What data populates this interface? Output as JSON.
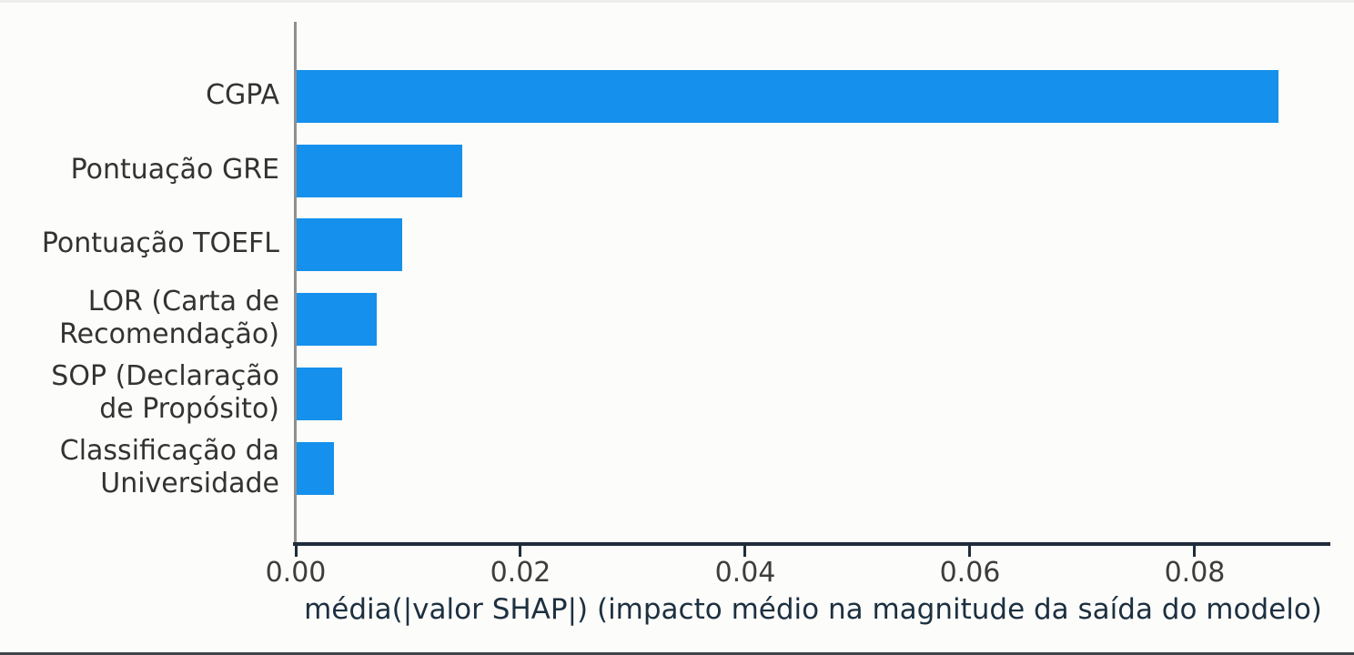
{
  "chart_data": {
    "type": "bar",
    "orientation": "horizontal",
    "title": "",
    "xlabel": "média(|valor SHAP|) (impacto médio na magnitude da saída do modelo)",
    "ylabel": "",
    "categories": [
      "CGPA",
      "Pontuação GRE",
      "Pontuação TOEFL",
      "LOR (Carta de Recomendação)",
      "SOP (Declaração de Propósito)",
      "Classificação da Universidade"
    ],
    "category_lines": [
      [
        "CGPA"
      ],
      [
        "Pontuação GRE"
      ],
      [
        "Pontuação TOEFL"
      ],
      [
        "LOR (Carta de",
        "Recomendação)"
      ],
      [
        "SOP (Declaração",
        "de Propósito)"
      ],
      [
        "Classificação da",
        "Universidade"
      ]
    ],
    "values": [
      0.0875,
      0.0148,
      0.0095,
      0.0072,
      0.0041,
      0.0034
    ],
    "xlim": [
      0,
      0.092
    ],
    "xticks": [
      0,
      0.02,
      0.04,
      0.06,
      0.08
    ],
    "xtick_labels": [
      "0.00",
      "0.02",
      "0.04",
      "0.06",
      "0.08"
    ],
    "grid": false,
    "legend": null,
    "bar_color": "#1590EC",
    "axis_color": "#1f2d3a",
    "left_spine_color": "#8f8f8f",
    "tick_label_color": "#3d3d3d",
    "category_label_color": "#333333",
    "xlabel_color": "#1d3040",
    "background_color": "#fcfcfa"
  }
}
